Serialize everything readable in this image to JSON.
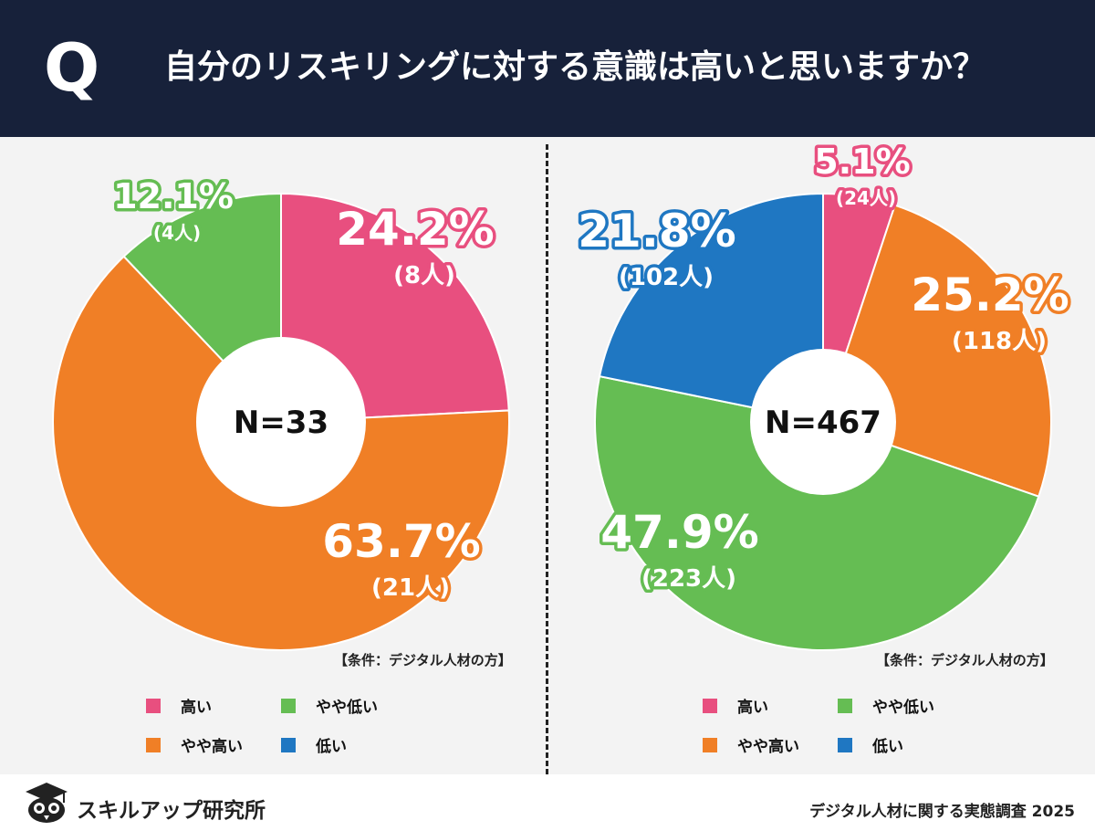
{
  "header": {
    "q_mark": "Q",
    "question": "自分のリスキリングに対する意識は高いと思いますか？"
  },
  "colors": {
    "high": "#e84f7f",
    "somewhat_high": "#f07f26",
    "somewhat_low": "#65bd53",
    "low": "#1f77c2",
    "header_bg": "#17213a"
  },
  "chart_data": [
    {
      "type": "pie",
      "center_label": "N=33",
      "categories": [
        "高い",
        "やや高い",
        "やや低い"
      ],
      "values": [
        24.2,
        63.7,
        12.1
      ],
      "counts": [
        "(8人)",
        "(21人)",
        "(4人)"
      ],
      "value_labels": [
        "24.2%",
        "63.7%",
        "12.1%"
      ],
      "condition": "【条件：デジタル人材の方】",
      "legend": [
        "高い",
        "やや低い",
        "やや高い",
        "低い"
      ]
    },
    {
      "type": "pie",
      "center_label": "N=467",
      "categories": [
        "高い",
        "やや高い",
        "やや低い",
        "低い"
      ],
      "values": [
        5.1,
        25.2,
        47.9,
        21.8
      ],
      "counts": [
        "(24人)",
        "(118人)",
        "(223人)",
        "(102人)"
      ],
      "value_labels": [
        "5.1%",
        "25.2%",
        "47.9%",
        "21.8%"
      ],
      "condition": "【条件：デジタル人材の方】",
      "legend": [
        "高い",
        "やや低い",
        "やや高い",
        "低い"
      ]
    }
  ],
  "footer": {
    "logo_text": "スキルアップ研究所",
    "source": "デジタル人材に関する実態調査 2025"
  }
}
